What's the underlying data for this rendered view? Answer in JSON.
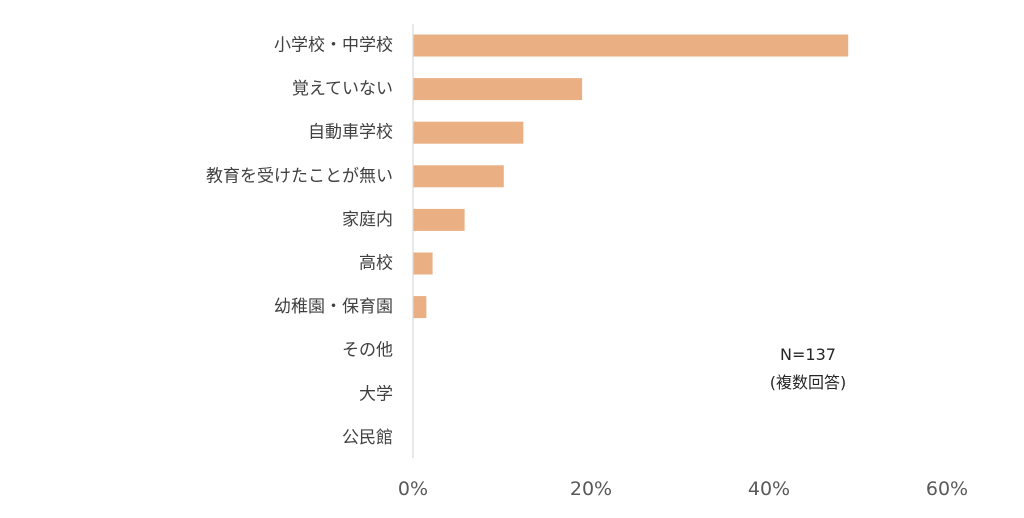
{
  "chart_data": {
    "type": "bar",
    "orientation": "horizontal",
    "categories": [
      "小学校・中学校",
      "覚えていない",
      "自動車学校",
      "教育を受けたことが無い",
      "家庭内",
      "高校",
      "幼稚園・保育園",
      "その他",
      "大学",
      "公民館"
    ],
    "values": [
      48.9,
      19.0,
      12.4,
      10.2,
      5.8,
      2.2,
      1.5,
      0,
      0,
      0
    ],
    "unit": "%",
    "xlim": [
      0,
      60
    ],
    "x_ticks": [
      "0%",
      "20%",
      "40%",
      "60%"
    ],
    "bar_color": "#eaaf82",
    "axis_color": "#d9d9d9",
    "grid": false,
    "annotations": {
      "n": "N=137",
      "note": "(複数回答)"
    }
  }
}
